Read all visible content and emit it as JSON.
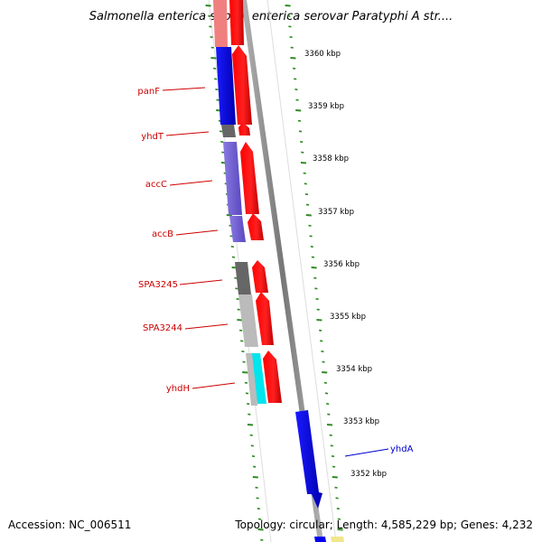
{
  "title": "Salmonella enterica subsp. enterica serovar Paratyphi A str....",
  "footer": {
    "accession": "Accession: NC_006511",
    "summary": "Topology: circular; Length: 4,585,229 bp; Genes: 4,232"
  },
  "scale_labels": [
    "3360 kbp",
    "3359 kbp",
    "3358 kbp",
    "3357 kbp",
    "3356 kbp",
    "3355 kbp",
    "3354 kbp",
    "3353 kbp",
    "3352 kbp"
  ],
  "gene_labels": [
    {
      "text": "panF",
      "color": "#cc0000"
    },
    {
      "text": "yhdT",
      "color": "#cc0000"
    },
    {
      "text": "accC",
      "color": "#cc0000"
    },
    {
      "text": "accB",
      "color": "#cc0000"
    },
    {
      "text": "SPA3245",
      "color": "#cc0000"
    },
    {
      "text": "SPA3244",
      "color": "#cc0000"
    },
    {
      "text": "yhdH",
      "color": "#cc0000"
    },
    {
      "text": "yhdA",
      "color": "#0000cc"
    }
  ],
  "colors": {
    "forward_strand": "#ff0000",
    "reverse_strand": "#0000ee",
    "backbone": "#808080",
    "tick": "#2e8b22",
    "cog_purple": "#7b68d8",
    "cog_gray_dark": "#666666",
    "cog_gray_light": "#bbbbbb",
    "cog_cyan": "#00e5ee",
    "cog_pink": "#f08080"
  }
}
